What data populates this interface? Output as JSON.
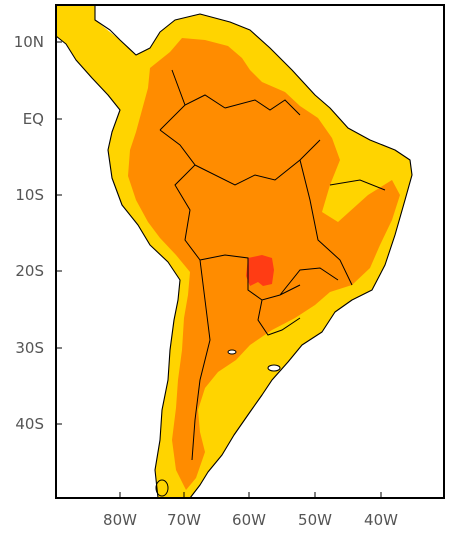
{
  "map": {
    "colors": {
      "background": "#ffffff",
      "lowest": "#FFD400",
      "medium": "#FF8C00",
      "high": "#FF3C14",
      "frame": "#000000",
      "labels": "#555555"
    },
    "y_labels": [
      "10N",
      "EQ",
      "10S",
      "20S",
      "30S",
      "40S"
    ],
    "x_labels": [
      "80W",
      "70W",
      "60W",
      "50W",
      "40W"
    ]
  }
}
